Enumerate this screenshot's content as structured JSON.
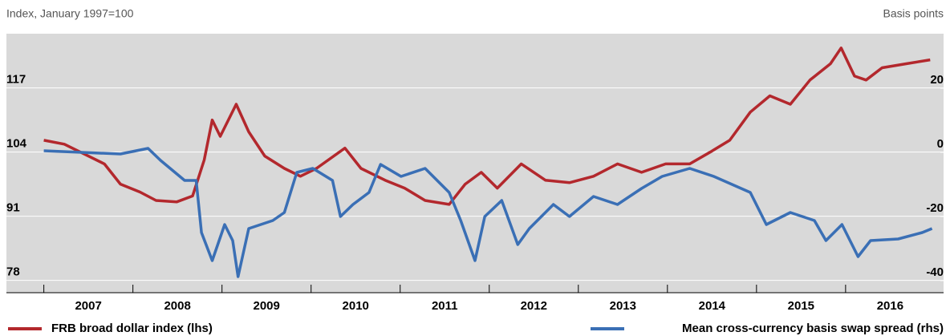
{
  "chart_data": {
    "type": "line",
    "y_axis_label": "Index, January 1997=100",
    "y2_axis_label": "Basis points",
    "xlim": [
      2006.58,
      2017.1
    ],
    "xticks": [
      2007,
      2008,
      2009,
      2010,
      2011,
      2012,
      2013,
      2014,
      2015,
      2016
    ],
    "ylim": [
      75.5,
      128
    ],
    "yticks": [
      78,
      91,
      104,
      117
    ],
    "y2lim": [
      -43.75,
      37
    ],
    "y2ticks": [
      -40,
      -20,
      0,
      20
    ],
    "grid": true,
    "background": "#d9d9d9",
    "series": [
      {
        "name": "FRB broad dollar index (lhs)",
        "color": "#b3282d",
        "axis": "y",
        "x": [
          2007.0,
          2007.23,
          2007.5,
          2007.68,
          2007.86,
          2008.08,
          2008.26,
          2008.49,
          2008.67,
          2008.8,
          2008.89,
          2008.98,
          2009.16,
          2009.3,
          2009.48,
          2009.7,
          2009.88,
          2010.06,
          2010.38,
          2010.56,
          2010.83,
          2011.05,
          2011.28,
          2011.55,
          2011.73,
          2011.91,
          2012.09,
          2012.36,
          2012.63,
          2012.9,
          2013.17,
          2013.44,
          2013.71,
          2013.98,
          2014.25,
          2014.48,
          2014.7,
          2014.93,
          2015.15,
          2015.38,
          2015.6,
          2015.83,
          2015.95,
          2016.1,
          2016.23,
          2016.41,
          2016.68,
          2016.95
        ],
        "values": [
          106.4,
          105.6,
          103.2,
          101.6,
          97.5,
          95.9,
          94.2,
          93.9,
          95.1,
          102.4,
          110.5,
          107.2,
          113.7,
          108.1,
          103.2,
          100.7,
          99.1,
          100.7,
          104.8,
          100.7,
          98.3,
          96.7,
          94.2,
          93.4,
          97.5,
          99.9,
          96.7,
          101.6,
          98.3,
          97.8,
          99.1,
          101.6,
          99.9,
          101.6,
          101.6,
          104.0,
          106.4,
          112.1,
          115.4,
          113.7,
          118.6,
          121.9,
          125.1,
          119.4,
          118.6,
          121.1,
          121.9,
          122.7
        ]
      },
      {
        "name": "Mean cross-currency basis swap spread (rhs)",
        "color": "#3a6fb5",
        "axis": "y2",
        "x": [
          2007.0,
          2007.86,
          2008.17,
          2008.31,
          2008.58,
          2008.71,
          2008.77,
          2008.89,
          2009.03,
          2009.12,
          2009.18,
          2009.3,
          2009.57,
          2009.7,
          2009.84,
          2010.02,
          2010.24,
          2010.33,
          2010.47,
          2010.65,
          2010.78,
          2011.01,
          2011.28,
          2011.55,
          2011.68,
          2011.84,
          2011.95,
          2012.14,
          2012.32,
          2012.45,
          2012.72,
          2012.9,
          2013.17,
          2013.44,
          2013.71,
          2013.94,
          2014.25,
          2014.52,
          2014.93,
          2015.11,
          2015.38,
          2015.65,
          2015.78,
          2015.96,
          2016.14,
          2016.28,
          2016.59,
          2016.86,
          2016.97
        ],
        "values": [
          0.5,
          -0.5,
          1.25,
          -2.5,
          -8.75,
          -8.75,
          -25,
          -33.75,
          -22.5,
          -27.5,
          -38.75,
          -23.75,
          -21.25,
          -18.75,
          -6.25,
          -5,
          -8.75,
          -20,
          -16.25,
          -12.5,
          -3.75,
          -7.5,
          -5,
          -12.5,
          -21.25,
          -33.75,
          -20,
          -15,
          -28.75,
          -23.75,
          -16.25,
          -20,
          -13.75,
          -16.25,
          -11.25,
          -7.5,
          -5,
          -7.5,
          -12.5,
          -22.5,
          -18.75,
          -21.25,
          -27.5,
          -22.5,
          -32.5,
          -27.5,
          -27,
          -25,
          -23.75
        ]
      }
    ]
  }
}
